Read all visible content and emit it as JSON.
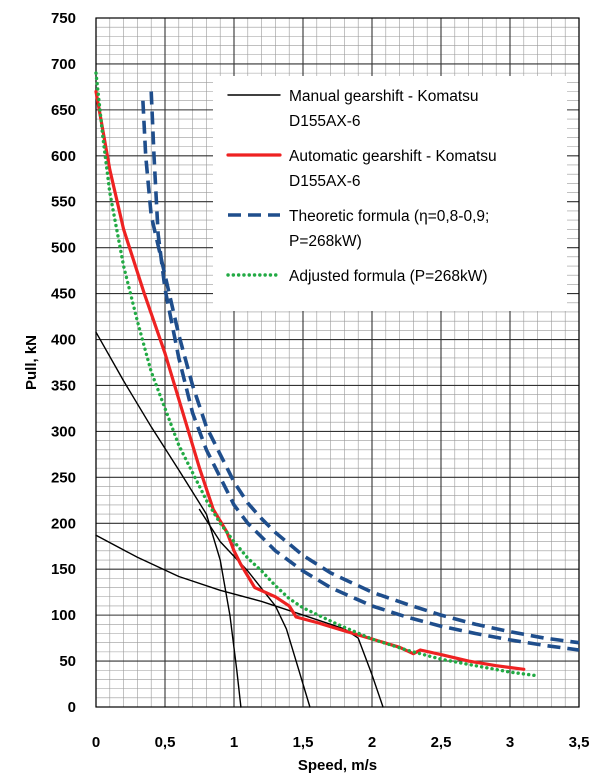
{
  "chart_data": {
    "type": "line",
    "title": "",
    "xlabel": "Speed, m/s",
    "ylabel": "Pull, kN",
    "xlim": [
      0,
      3.5
    ],
    "ylim": [
      0,
      750
    ],
    "x_tick_labels": [
      "0",
      "0,5",
      "1",
      "1,5",
      "2",
      "2,5",
      "3",
      "3,5"
    ],
    "x_tick_values": [
      0,
      0.5,
      1,
      1.5,
      2,
      2.5,
      3,
      3.5
    ],
    "y_tick_labels": [
      "0",
      "50",
      "100",
      "150",
      "200",
      "250",
      "300",
      "350",
      "400",
      "450",
      "500",
      "550",
      "600",
      "650",
      "700",
      "750"
    ],
    "y_tick_values": [
      0,
      50,
      100,
      150,
      200,
      250,
      300,
      350,
      400,
      450,
      500,
      550,
      600,
      650,
      700,
      750
    ],
    "grid": true,
    "legend_position": "top-right",
    "series": [
      {
        "name": "Manual gearshift - Komatsu D155AX-6",
        "legend_lines": [
          "Manual gearshift - Komatsu",
          "D155AX-6"
        ],
        "color": "#000000",
        "style": "solid",
        "segments": [
          [
            [
              0,
              408
            ],
            [
              0.2,
              355
            ],
            [
              0.4,
              305
            ],
            [
              0.6,
              258
            ],
            [
              0.8,
              210
            ],
            [
              0.9,
              160
            ],
            [
              0.97,
              100
            ],
            [
              1.02,
              40
            ],
            [
              1.05,
              0
            ]
          ],
          [
            [
              0.75,
              215
            ],
            [
              0.9,
              180
            ],
            [
              1.1,
              148
            ],
            [
              1.3,
              110
            ],
            [
              1.38,
              85
            ],
            [
              1.45,
              50
            ],
            [
              1.55,
              0
            ]
          ],
          [
            [
              0,
              187
            ],
            [
              0.3,
              163
            ],
            [
              0.6,
              142
            ],
            [
              0.9,
              127
            ],
            [
              1.2,
              115
            ],
            [
              1.5,
              100
            ],
            [
              1.8,
              85
            ],
            [
              1.9,
              75
            ],
            [
              2,
              35
            ],
            [
              2.08,
              0
            ]
          ]
        ]
      },
      {
        "name": "Automatic gearshift - Komatsu D155AX-6",
        "legend_lines": [
          "Automatic gearshift - Komatsu",
          "D155AX-6"
        ],
        "color": "#ee2222",
        "style": "solid",
        "segments": [
          [
            [
              0,
              670
            ],
            [
              0.1,
              585
            ],
            [
              0.2,
              520
            ],
            [
              0.35,
              450
            ],
            [
              0.5,
              385
            ],
            [
              0.65,
              310
            ],
            [
              0.75,
              260
            ],
            [
              0.85,
              215
            ],
            [
              0.95,
              190
            ],
            [
              1.0,
              170
            ],
            [
              1.05,
              155
            ],
            [
              1.15,
              130
            ],
            [
              1.3,
              120
            ],
            [
              1.4,
              110
            ],
            [
              1.45,
              98
            ],
            [
              1.6,
              92
            ],
            [
              1.8,
              83
            ],
            [
              2.0,
              74
            ],
            [
              2.2,
              65
            ],
            [
              2.3,
              58
            ],
            [
              2.35,
              62
            ],
            [
              2.5,
              57
            ],
            [
              2.7,
              50
            ],
            [
              2.9,
              45
            ],
            [
              3.1,
              41
            ]
          ]
        ]
      },
      {
        "name": "Theoretic formula (η=0,8-0,9; P=268kW)",
        "legend_lines": [
          "Theoretic formula (η=0,8-0,9;",
          "P=268kW)"
        ],
        "color": "#1f4e8c",
        "style": "dashed",
        "segments": [
          [
            [
              0.4,
              670
            ],
            [
              0.42,
              600
            ],
            [
              0.45,
              515
            ],
            [
              0.5,
              455
            ],
            [
              0.6,
              380
            ],
            [
              0.7,
              320
            ],
            [
              0.8,
              280
            ],
            [
              0.9,
              250
            ],
            [
              1,
              220
            ],
            [
              1.1,
              200
            ],
            [
              1.2,
              185
            ],
            [
              1.3,
              170
            ],
            [
              1.5,
              148
            ],
            [
              1.7,
              130
            ],
            [
              2,
              110
            ],
            [
              2.25,
              98
            ],
            [
              2.5,
              88
            ],
            [
              2.75,
              80
            ],
            [
              3,
              73
            ],
            [
              3.25,
              67
            ],
            [
              3.5,
              62
            ]
          ],
          [
            [
              0.34,
              660
            ],
            [
              0.36,
              600
            ],
            [
              0.4,
              535
            ],
            [
              0.5,
              470
            ],
            [
              0.6,
              405
            ],
            [
              0.7,
              350
            ],
            [
              0.8,
              305
            ],
            [
              0.9,
              275
            ],
            [
              1,
              245
            ],
            [
              1.1,
              222
            ],
            [
              1.2,
              205
            ],
            [
              1.3,
              190
            ],
            [
              1.5,
              165
            ],
            [
              1.7,
              146
            ],
            [
              2,
              125
            ],
            [
              2.25,
              112
            ],
            [
              2.5,
              100
            ],
            [
              2.75,
              90
            ],
            [
              3,
              82
            ],
            [
              3.25,
              75
            ],
            [
              3.5,
              70
            ]
          ]
        ]
      },
      {
        "name": "Adjusted formula (P=268kW)",
        "legend_lines": [
          "Adjusted formula (P=268kW)"
        ],
        "color": "#22aa44",
        "style": "dotted",
        "segments": [
          [
            [
              0,
              690
            ],
            [
              0.05,
              620
            ],
            [
              0.1,
              560
            ],
            [
              0.2,
              480
            ],
            [
              0.3,
              420
            ],
            [
              0.4,
              365
            ],
            [
              0.5,
              325
            ],
            [
              0.6,
              285
            ],
            [
              0.7,
              255
            ],
            [
              0.8,
              225
            ],
            [
              0.9,
              200
            ],
            [
              1.0,
              180
            ],
            [
              1.1,
              162
            ],
            [
              1.2,
              148
            ],
            [
              1.3,
              132
            ],
            [
              1.4,
              118
            ],
            [
              1.5,
              108
            ],
            [
              1.75,
              90
            ],
            [
              2.0,
              74
            ],
            [
              2.25,
              62
            ],
            [
              2.5,
              52
            ],
            [
              2.75,
              45
            ],
            [
              3.0,
              38
            ],
            [
              3.2,
              34
            ]
          ]
        ]
      }
    ]
  }
}
